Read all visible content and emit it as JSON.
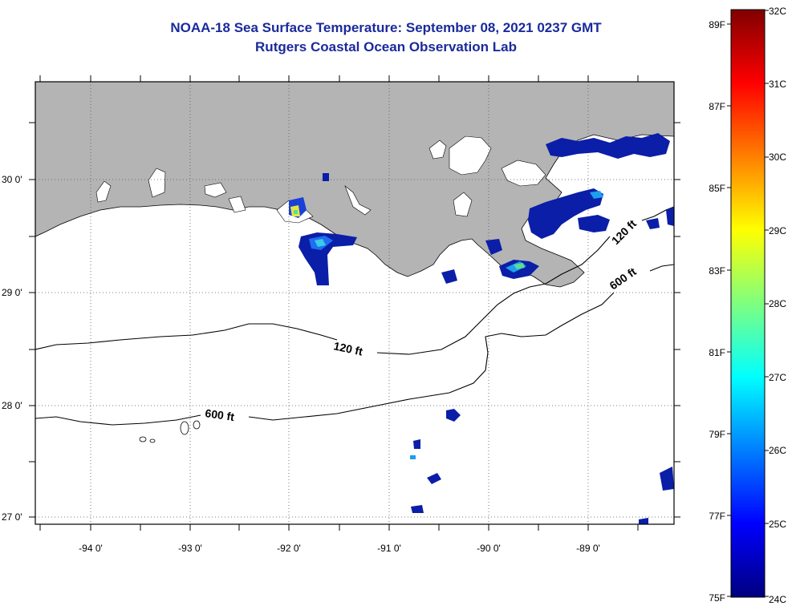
{
  "title": {
    "line1": "NOAA-18 Sea Surface Temperature:  September 08, 2021 0237 GMT",
    "line2": "Rutgers Coastal Ocean Observation Lab"
  },
  "map": {
    "lat_labels": [
      "30 0'",
      "29 0'",
      "28 0'",
      "27 0'"
    ],
    "lon_labels": [
      "-94 0'",
      "-93 0'",
      "-92 0'",
      "-91 0'",
      "-90 0'",
      "-89 0'"
    ],
    "land_color": "#b4b4b4",
    "ocean_color": "#ffffff",
    "contours": [
      {
        "depth": "120 ft"
      },
      {
        "depth": "600 ft"
      },
      {
        "depth": "120 ft"
      },
      {
        "depth": "600 ft"
      }
    ]
  },
  "colorbar": {
    "celsius_labels": [
      "32C",
      "31C",
      "30C",
      "29C",
      "28C",
      "27C",
      "26C",
      "25C",
      "24C"
    ],
    "fahrenheit_labels": [
      "89F",
      "87F",
      "85F",
      "83F",
      "81F",
      "79F",
      "77F",
      "75F"
    ],
    "color_stops": [
      "#00007f",
      "#0000ff",
      "#007fff",
      "#00ffff",
      "#7fff7f",
      "#ffff00",
      "#ff7f00",
      "#ff0000",
      "#7f0000"
    ]
  }
}
